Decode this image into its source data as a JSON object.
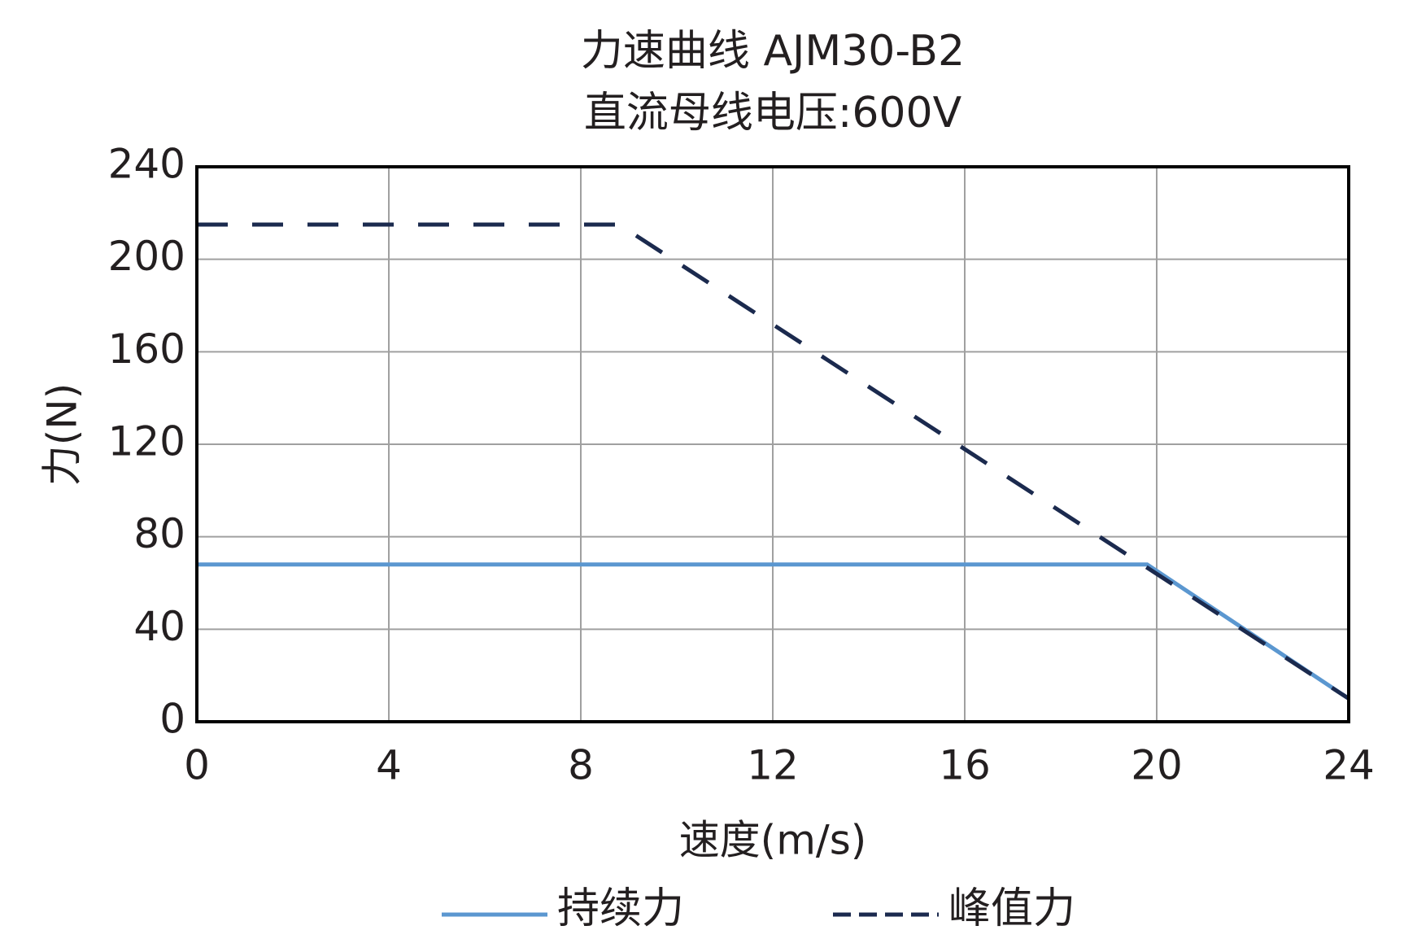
{
  "chart_data": {
    "type": "line",
    "title": "力速曲线 AJM30-B2",
    "subtitle": "直流母线电压:600V",
    "x_label": "速度(m/s)",
    "y_label": "力(N)",
    "xlim": [
      0,
      24
    ],
    "xticks": [
      0,
      4,
      8,
      12,
      16,
      20,
      24
    ],
    "ylim": [
      0,
      240
    ],
    "yticks": [
      0,
      40,
      80,
      120,
      160,
      200,
      240
    ],
    "grid": true,
    "legend": "bottom",
    "series": [
      {
        "name": "持续力",
        "color": "#5b97d0",
        "line_style": "solid",
        "x": [
          0,
          19.8,
          24
        ],
        "values": [
          68,
          68,
          10
        ]
      },
      {
        "name": "峰值力",
        "color": "#1b2a4e",
        "line_style": "dashed",
        "x": [
          0,
          8.8,
          24
        ],
        "values": [
          215,
          215,
          10
        ]
      }
    ]
  }
}
